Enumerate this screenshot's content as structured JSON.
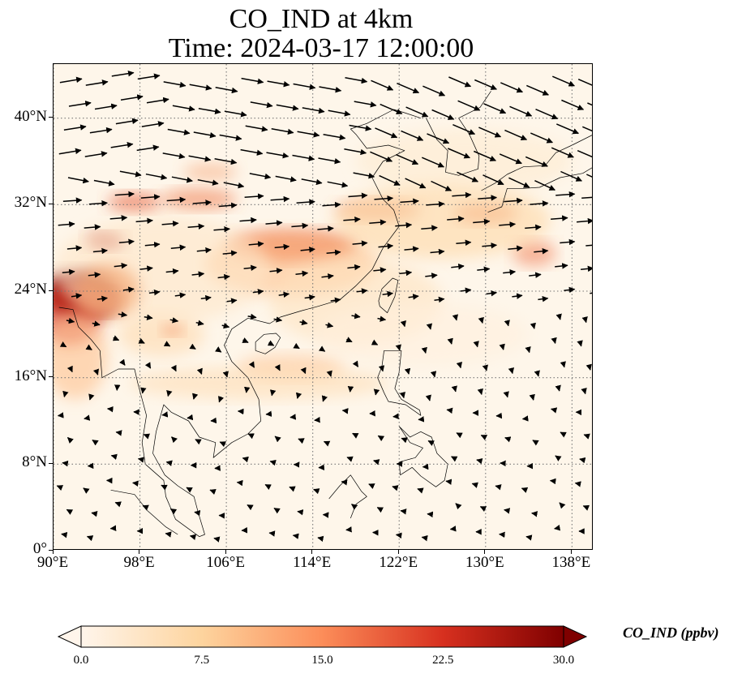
{
  "title_line1": "CO_IND at 4km",
  "title_line2": "Time: 2024-03-17 12:00:00",
  "map": {
    "lon_range": [
      90,
      140
    ],
    "lat_range": [
      0,
      45
    ],
    "lon_ticks": [
      "90°E",
      "98°E",
      "106°E",
      "114°E",
      "122°E",
      "130°E",
      "138°E"
    ],
    "lat_ticks": [
      "0°",
      "8°N",
      "16°N",
      "24°N",
      "32°N",
      "40°N"
    ],
    "gridlines": "dotted",
    "plume_color_high": "#7f0000",
    "plume_color_mid": "#e8603a",
    "plume_color_low": "#fdd6a0",
    "background_color": "#fff5eb"
  },
  "colorbar": {
    "label": "CO_IND (ppbv)",
    "min": 0,
    "max": 30,
    "ticks": [
      "0.0",
      "7.5",
      "15.0",
      "22.5",
      "30.0"
    ],
    "extend": "both",
    "colormap": [
      "#fff5eb",
      "#fdd49e",
      "#fc8d59",
      "#d7301f",
      "#7f0000"
    ]
  },
  "legend_icons": {
    "wind": "wind-vector-arrow-icon",
    "extend_min": "colorbar-extend-min-icon",
    "extend_max": "colorbar-extend-max-icon"
  }
}
